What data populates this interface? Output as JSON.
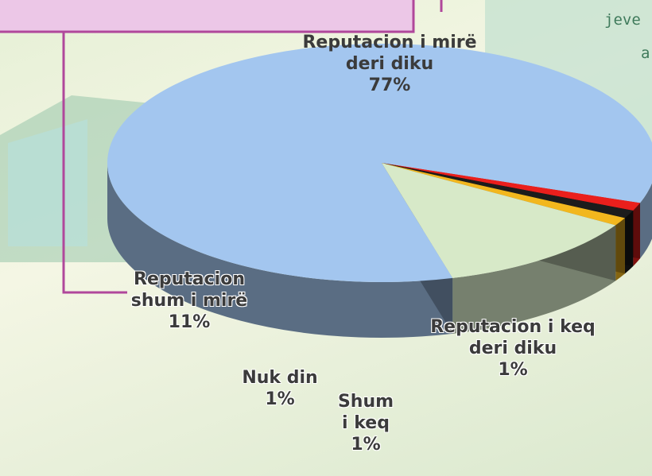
{
  "chart_data": {
    "type": "pie",
    "categories": [
      "Reputacion i mirë deri diku",
      "Reputacion i keq deri diku",
      "Shum i keq",
      "Nuk din",
      "Reputacion shum i mirë"
    ],
    "values": [
      77,
      1,
      1,
      1,
      11
    ],
    "value_labels": [
      "77%",
      "1%",
      "1%",
      "1%",
      "11%"
    ],
    "colors": [
      "#a3c6ef",
      "#ea1f1c",
      "#1c1c1c",
      "#f2b71e",
      "#d7e9c8"
    ],
    "annotations": [
      "jeve",
      "a"
    ]
  }
}
